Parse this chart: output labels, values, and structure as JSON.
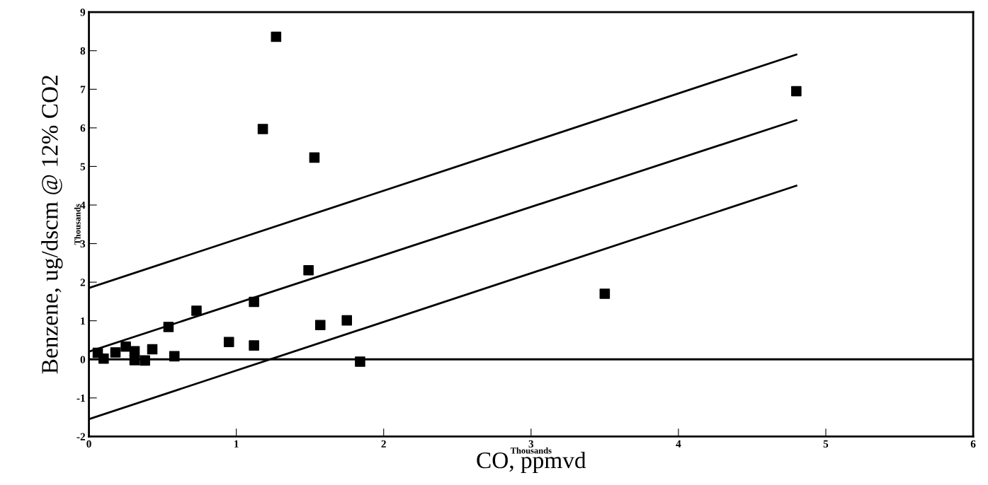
{
  "chart_data": {
    "type": "scatter",
    "xlabel": "CO, ppmvd",
    "ylabel": "Benzene, ug/dscm @ 12% CO2",
    "annotations": [
      "Thousands",
      "Thousands"
    ],
    "xlim": [
      0,
      6
    ],
    "ylim": [
      -2,
      9
    ],
    "xticks": [
      0,
      1,
      2,
      3,
      4,
      5,
      6
    ],
    "yticks": [
      -2,
      -1,
      0,
      1,
      2,
      3,
      4,
      5,
      6,
      7,
      8,
      9
    ],
    "grid": false,
    "marker": "square",
    "series": [
      {
        "color": "#000000",
        "x": [
          1.27,
          1.18,
          1.53,
          1.49,
          1.12,
          0.73,
          0.54,
          0.95,
          1.12,
          1.57,
          1.75,
          1.84,
          0.43,
          0.58,
          0.31,
          0.38,
          0.25,
          0.18,
          0.31,
          0.1,
          0.06,
          4.8,
          3.5
        ],
        "values": [
          8.36,
          5.97,
          5.23,
          2.31,
          1.49,
          1.26,
          0.84,
          0.45,
          0.36,
          0.89,
          1.01,
          -0.06,
          0.26,
          0.08,
          -0.02,
          -0.03,
          0.33,
          0.18,
          0.21,
          0.02,
          0.17,
          6.95,
          1.7
        ]
      },
      {
        "type": "line",
        "color": "#000000",
        "marker": "none",
        "x": [
          0,
          4.8
        ],
        "values": [
          1.85,
          7.9
        ]
      },
      {
        "type": "line",
        "color": "#000000",
        "marker": "none",
        "x": [
          0,
          4.8
        ],
        "values": [
          0.2,
          6.2
        ]
      },
      {
        "type": "line",
        "color": "#000000",
        "marker": "none",
        "x": [
          0,
          4.8
        ],
        "values": [
          -1.55,
          4.5
        ]
      }
    ],
    "ref_lines": [
      {
        "axis": "y",
        "value": 0,
        "color": "#000000"
      }
    ]
  }
}
